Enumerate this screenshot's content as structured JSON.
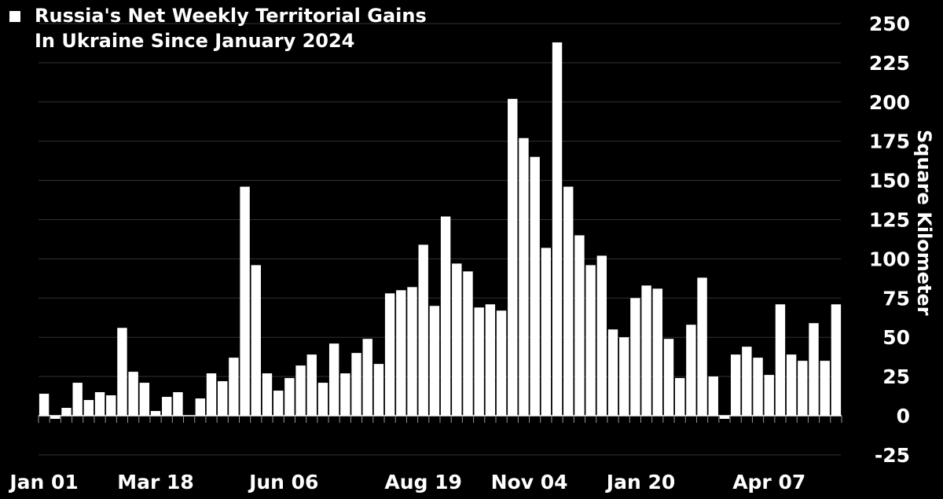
{
  "colors": {
    "background": "#000000",
    "bar": "#ffffff",
    "grid": "#333333",
    "text": "#ffffff"
  },
  "chart_data": {
    "type": "bar",
    "title_line1": "Russia's Net Weekly Territorial Gains",
    "title_line2": "In Ukraine Since January 2024",
    "ylabel": "Square Kilometer",
    "ylim": [
      -25,
      250
    ],
    "yticks": [
      -25,
      0,
      25,
      50,
      75,
      100,
      125,
      150,
      175,
      200,
      225,
      250
    ],
    "grid": true,
    "x_tick_labels": [
      {
        "label": "Jan 01",
        "index": 0.5
      },
      {
        "label": "Mar 18",
        "index": 10.5
      },
      {
        "label": "Jun 06",
        "index": 22
      },
      {
        "label": "Aug 19",
        "index": 34.5
      },
      {
        "label": "Nov 04",
        "index": 44
      },
      {
        "label": "Jan 20",
        "index": 54
      },
      {
        "label": "Apr 07",
        "index": 65.5
      }
    ],
    "values": [
      14,
      -2,
      5,
      21,
      10,
      15,
      13,
      56,
      28,
      21,
      3,
      12,
      15,
      0,
      11,
      27,
      22,
      37,
      146,
      96,
      27,
      16,
      24,
      32,
      39,
      21,
      46,
      27,
      40,
      49,
      33,
      78,
      80,
      82,
      109,
      70,
      127,
      97,
      92,
      69,
      71,
      67,
      202,
      177,
      165,
      107,
      238,
      146,
      115,
      96,
      102,
      55,
      50,
      75,
      83,
      81,
      49,
      24,
      58,
      88,
      25,
      -2,
      39,
      44,
      37,
      26,
      71,
      39,
      35,
      59,
      35,
      71
    ]
  }
}
